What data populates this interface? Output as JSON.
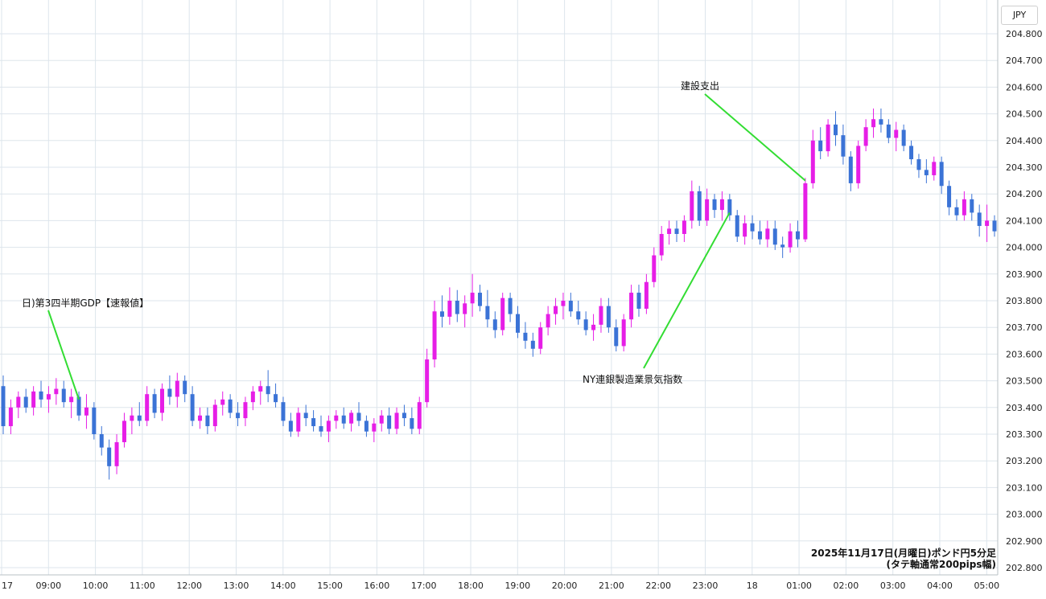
{
  "chart_data": {
    "type": "candlestick",
    "y_unit_label": "JPY",
    "y_ticks": [
      "204.800",
      "204.700",
      "204.600",
      "204.500",
      "204.400",
      "204.300",
      "204.200",
      "204.100",
      "204.000",
      "203.900",
      "203.800",
      "203.700",
      "203.600",
      "203.500",
      "203.400",
      "203.300",
      "203.200",
      "203.100",
      "203.000",
      "202.900",
      "202.800"
    ],
    "ylim": [
      202.78,
      204.85
    ],
    "x_ticks": [
      "17",
      "09:00",
      "10:00",
      "11:00",
      "12:00",
      "13:00",
      "14:00",
      "15:00",
      "16:00",
      "17:00",
      "18:00",
      "19:00",
      "20:00",
      "21:00",
      "22:00",
      "23:00",
      "18",
      "01:00",
      "02:00",
      "03:00",
      "04:00",
      "05:00"
    ],
    "grid": true,
    "colors": {
      "up": "#e61ee6",
      "down": "#3b73d6",
      "grid": "#dde5ec",
      "annotation_line": "#33dd33"
    },
    "candles": [
      [
        203.48,
        203.52,
        203.3,
        203.33
      ],
      [
        203.33,
        203.43,
        203.3,
        203.4
      ],
      [
        203.4,
        203.46,
        203.36,
        203.44
      ],
      [
        203.44,
        203.47,
        203.38,
        203.4
      ],
      [
        203.4,
        203.48,
        203.37,
        203.46
      ],
      [
        203.46,
        203.5,
        203.4,
        203.43
      ],
      [
        203.43,
        203.48,
        203.38,
        203.45
      ],
      [
        203.45,
        203.51,
        203.41,
        203.47
      ],
      [
        203.47,
        203.5,
        203.4,
        203.42
      ],
      [
        203.42,
        203.47,
        203.36,
        203.44
      ],
      [
        203.44,
        203.46,
        203.35,
        203.37
      ],
      [
        203.37,
        203.45,
        203.32,
        203.4
      ],
      [
        203.4,
        203.42,
        203.28,
        203.3
      ],
      [
        203.3,
        203.33,
        203.22,
        203.25
      ],
      [
        203.25,
        203.28,
        203.13,
        203.18
      ],
      [
        203.18,
        203.3,
        203.15,
        203.27
      ],
      [
        203.27,
        203.38,
        203.25,
        203.35
      ],
      [
        203.35,
        203.4,
        203.3,
        203.37
      ],
      [
        203.37,
        203.42,
        203.33,
        203.35
      ],
      [
        203.35,
        203.48,
        203.33,
        203.45
      ],
      [
        203.45,
        203.47,
        203.36,
        203.38
      ],
      [
        203.38,
        203.49,
        203.35,
        203.47
      ],
      [
        203.47,
        203.52,
        203.41,
        203.44
      ],
      [
        203.44,
        203.53,
        203.4,
        203.5
      ],
      [
        203.5,
        203.52,
        203.42,
        203.45
      ],
      [
        203.45,
        203.48,
        203.33,
        203.35
      ],
      [
        203.35,
        203.4,
        203.32,
        203.37
      ],
      [
        203.37,
        203.4,
        203.3,
        203.33
      ],
      [
        203.33,
        203.43,
        203.31,
        203.41
      ],
      [
        203.41,
        203.46,
        203.37,
        203.43
      ],
      [
        203.43,
        203.45,
        203.36,
        203.38
      ],
      [
        203.38,
        203.42,
        203.33,
        203.36
      ],
      [
        203.36,
        203.44,
        203.33,
        203.42
      ],
      [
        203.42,
        203.48,
        203.39,
        203.46
      ],
      [
        203.46,
        203.5,
        203.41,
        203.48
      ],
      [
        203.48,
        203.54,
        203.42,
        203.45
      ],
      [
        203.45,
        203.49,
        203.4,
        203.42
      ],
      [
        203.42,
        203.44,
        203.33,
        203.35
      ],
      [
        203.35,
        203.38,
        203.29,
        203.31
      ],
      [
        203.31,
        203.4,
        203.29,
        203.38
      ],
      [
        203.38,
        203.41,
        203.33,
        203.36
      ],
      [
        203.36,
        203.39,
        203.31,
        203.33
      ],
      [
        203.33,
        203.37,
        203.29,
        203.31
      ],
      [
        203.31,
        203.37,
        203.27,
        203.35
      ],
      [
        203.35,
        203.39,
        203.32,
        203.37
      ],
      [
        203.37,
        203.4,
        203.32,
        203.34
      ],
      [
        203.34,
        203.39,
        203.31,
        203.38
      ],
      [
        203.38,
        203.42,
        203.33,
        203.35
      ],
      [
        203.35,
        203.37,
        203.29,
        203.31
      ],
      [
        203.31,
        203.36,
        203.27,
        203.34
      ],
      [
        203.34,
        203.39,
        203.31,
        203.37
      ],
      [
        203.37,
        203.4,
        203.3,
        203.32
      ],
      [
        203.32,
        203.4,
        203.3,
        203.38
      ],
      [
        203.38,
        203.41,
        203.33,
        203.36
      ],
      [
        203.36,
        203.4,
        203.3,
        203.32
      ],
      [
        203.32,
        203.44,
        203.3,
        203.42
      ],
      [
        203.42,
        203.62,
        203.4,
        203.58
      ],
      [
        203.58,
        203.8,
        203.55,
        203.76
      ],
      [
        203.76,
        203.82,
        203.7,
        203.74
      ],
      [
        203.74,
        203.85,
        203.71,
        203.8
      ],
      [
        203.8,
        203.84,
        203.72,
        203.75
      ],
      [
        203.75,
        203.82,
        203.7,
        203.79
      ],
      [
        203.79,
        203.9,
        203.74,
        203.83
      ],
      [
        203.83,
        203.86,
        203.76,
        203.78
      ],
      [
        203.78,
        203.84,
        203.7,
        203.73
      ],
      [
        203.73,
        203.76,
        203.66,
        203.69
      ],
      [
        203.69,
        203.83,
        203.67,
        203.81
      ],
      [
        203.81,
        203.83,
        203.72,
        203.75
      ],
      [
        203.75,
        203.78,
        203.66,
        203.68
      ],
      [
        203.68,
        203.72,
        203.62,
        203.65
      ],
      [
        203.65,
        203.68,
        203.59,
        203.62
      ],
      [
        203.62,
        203.72,
        203.6,
        203.7
      ],
      [
        203.7,
        203.78,
        203.67,
        203.75
      ],
      [
        203.75,
        203.81,
        203.71,
        203.78
      ],
      [
        203.78,
        203.83,
        203.73,
        203.8
      ],
      [
        203.8,
        203.83,
        203.74,
        203.76
      ],
      [
        203.76,
        203.8,
        203.71,
        203.73
      ],
      [
        203.73,
        203.76,
        203.67,
        203.69
      ],
      [
        203.69,
        203.75,
        203.65,
        203.71
      ],
      [
        203.71,
        203.81,
        203.68,
        203.78
      ],
      [
        203.78,
        203.81,
        203.68,
        203.7
      ],
      [
        203.7,
        203.73,
        203.61,
        203.63
      ],
      [
        203.63,
        203.75,
        203.61,
        203.73
      ],
      [
        203.73,
        203.86,
        203.7,
        203.83
      ],
      [
        203.83,
        203.86,
        203.74,
        203.77
      ],
      [
        203.77,
        203.9,
        203.75,
        203.87
      ],
      [
        203.87,
        204.0,
        203.85,
        203.97
      ],
      [
        203.97,
        204.08,
        203.95,
        204.05
      ],
      [
        204.05,
        204.1,
        204.01,
        204.07
      ],
      [
        204.07,
        204.1,
        204.02,
        204.05
      ],
      [
        204.05,
        204.12,
        204.02,
        204.1
      ],
      [
        204.1,
        204.25,
        204.07,
        204.21
      ],
      [
        204.21,
        204.23,
        204.08,
        204.1
      ],
      [
        204.1,
        204.22,
        204.08,
        204.18
      ],
      [
        204.18,
        204.2,
        204.11,
        204.14
      ],
      [
        204.14,
        204.21,
        204.1,
        204.18
      ],
      [
        204.18,
        204.2,
        204.1,
        204.12
      ],
      [
        204.12,
        204.14,
        204.02,
        204.04
      ],
      [
        204.04,
        204.12,
        204.01,
        204.09
      ],
      [
        204.09,
        204.12,
        204.03,
        204.06
      ],
      [
        204.06,
        204.1,
        204.01,
        204.03
      ],
      [
        204.03,
        204.1,
        204.0,
        204.07
      ],
      [
        204.07,
        204.1,
        203.99,
        204.01
      ],
      [
        204.01,
        204.04,
        203.96,
        204.0
      ],
      [
        204.0,
        204.09,
        203.98,
        204.06
      ],
      [
        204.06,
        204.1,
        204.0,
        204.03
      ],
      [
        204.03,
        204.26,
        204.02,
        204.24
      ],
      [
        204.24,
        204.44,
        204.22,
        204.4
      ],
      [
        204.4,
        204.45,
        204.33,
        204.36
      ],
      [
        204.36,
        204.48,
        204.34,
        204.46
      ],
      [
        204.46,
        204.51,
        204.38,
        204.42
      ],
      [
        204.42,
        204.46,
        204.31,
        204.34
      ],
      [
        204.34,
        204.36,
        204.21,
        204.24
      ],
      [
        204.24,
        204.4,
        204.22,
        204.38
      ],
      [
        204.38,
        204.48,
        204.36,
        204.45
      ],
      [
        204.45,
        204.52,
        204.41,
        204.48
      ],
      [
        204.48,
        204.52,
        204.43,
        204.46
      ],
      [
        204.46,
        204.48,
        204.39,
        204.41
      ],
      [
        204.41,
        204.47,
        204.36,
        204.44
      ],
      [
        204.44,
        204.46,
        204.36,
        204.38
      ],
      [
        204.38,
        204.4,
        204.31,
        204.33
      ],
      [
        204.33,
        204.35,
        204.26,
        204.29
      ],
      [
        204.29,
        204.33,
        204.24,
        204.27
      ],
      [
        204.27,
        204.34,
        204.25,
        204.32
      ],
      [
        204.32,
        204.34,
        204.2,
        204.23
      ],
      [
        204.23,
        204.25,
        204.12,
        204.15
      ],
      [
        204.15,
        204.18,
        204.1,
        204.12
      ],
      [
        204.12,
        204.21,
        204.1,
        204.18
      ],
      [
        204.18,
        204.2,
        204.1,
        204.13
      ],
      [
        204.13,
        204.16,
        204.04,
        204.08
      ],
      [
        204.08,
        204.16,
        204.02,
        204.1
      ],
      [
        204.1,
        204.12,
        204.04,
        204.06
      ]
    ],
    "annotations": [
      {
        "text": "日)第3四半期GDP【速報値】",
        "x": 10,
        "y": 203.43,
        "label_y": 203.78
      },
      {
        "text": "NY連銀製造業景気指数",
        "x": 96,
        "y": 204.13,
        "label_y": 203.52
      },
      {
        "text": "建設支出",
        "x": 106,
        "y": 204.25,
        "label_y": 204.6
      }
    ]
  },
  "caption": {
    "line1": "2025年11月17日(月曜日)ポンド円5分足",
    "line2": "(タテ軸通常200pips幅)"
  }
}
